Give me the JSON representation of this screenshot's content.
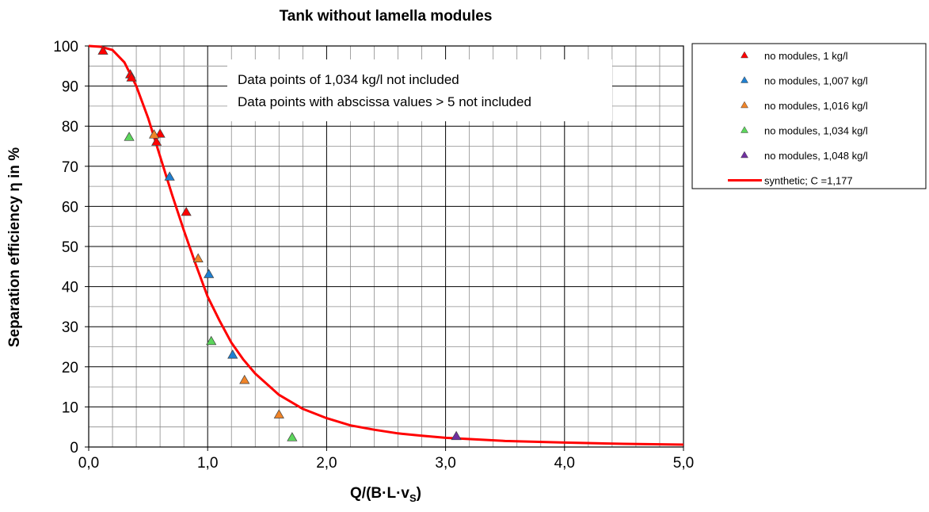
{
  "chart_data": {
    "type": "scatter",
    "title": "Tank without lamella modules",
    "ylabel": "Separation efficiency η in %",
    "xlabel": {
      "main": "Q/(B·L·v",
      "sub": "S",
      "close": ")"
    },
    "xlim": [
      0,
      5
    ],
    "ylim": [
      0,
      100
    ],
    "x_ticks": [
      0,
      1,
      2,
      3,
      4,
      5
    ],
    "x_tick_labels": [
      "0,0",
      "1,0",
      "2,0",
      "3,0",
      "4,0",
      "5,0"
    ],
    "y_ticks": [
      0,
      10,
      20,
      30,
      40,
      50,
      60,
      70,
      80,
      90,
      100
    ],
    "y_tick_labels": [
      "0",
      "10",
      "20",
      "30",
      "40",
      "50",
      "60",
      "70",
      "80",
      "90",
      "100"
    ],
    "grid": true,
    "legend_position": "right",
    "annotations": [
      "Data points of 1,034 kg/l not included",
      "Data points with abscissa values > 5 not included"
    ],
    "series": [
      {
        "name": "no modules, 1 kg/l",
        "kind": "scatter",
        "color": "#ff0000",
        "points": [
          [
            0.12,
            98.7
          ],
          [
            0.35,
            92.8
          ],
          [
            0.36,
            92.0
          ],
          [
            0.57,
            76.0
          ],
          [
            0.6,
            78.0
          ],
          [
            0.82,
            58.5
          ]
        ]
      },
      {
        "name": "no modules, 1,007 kg/l",
        "kind": "scatter",
        "color": "#1f7fd0",
        "points": [
          [
            0.68,
            67.3
          ],
          [
            1.01,
            43.0
          ],
          [
            1.21,
            22.9
          ]
        ]
      },
      {
        "name": "no modules, 1,016 kg/l",
        "kind": "scatter",
        "color": "#f08428",
        "points": [
          [
            0.55,
            77.8
          ],
          [
            0.92,
            46.9
          ],
          [
            1.31,
            16.6
          ],
          [
            1.6,
            8.0
          ]
        ]
      },
      {
        "name": "no modules, 1,034 kg/l",
        "kind": "scatter",
        "color": "#5cd65c",
        "points": [
          [
            0.34,
            77.2
          ],
          [
            1.03,
            26.3
          ],
          [
            1.71,
            2.3
          ]
        ]
      },
      {
        "name": "no modules, 1,048 kg/l",
        "kind": "scatter",
        "color": "#7030a0",
        "points": [
          [
            3.09,
            2.6
          ]
        ]
      },
      {
        "name": "synthetic; C =1,177",
        "kind": "line",
        "color": "#ff0000",
        "points": [
          [
            0.0,
            100.0
          ],
          [
            0.1,
            99.8
          ],
          [
            0.2,
            99.0
          ],
          [
            0.3,
            95.9
          ],
          [
            0.4,
            90.0
          ],
          [
            0.5,
            82.0
          ],
          [
            0.6,
            72.5
          ],
          [
            0.7,
            63.0
          ],
          [
            0.8,
            54.0
          ],
          [
            0.9,
            45.5
          ],
          [
            1.0,
            37.5
          ],
          [
            1.1,
            31.5
          ],
          [
            1.2,
            26.0
          ],
          [
            1.3,
            21.8
          ],
          [
            1.4,
            18.3
          ],
          [
            1.6,
            13.0
          ],
          [
            1.8,
            9.5
          ],
          [
            2.0,
            7.2
          ],
          [
            2.2,
            5.4
          ],
          [
            2.4,
            4.3
          ],
          [
            2.6,
            3.4
          ],
          [
            2.8,
            2.8
          ],
          [
            3.0,
            2.3
          ],
          [
            3.5,
            1.5
          ],
          [
            4.0,
            1.1
          ],
          [
            4.5,
            0.8
          ],
          [
            5.0,
            0.6
          ]
        ]
      }
    ]
  }
}
